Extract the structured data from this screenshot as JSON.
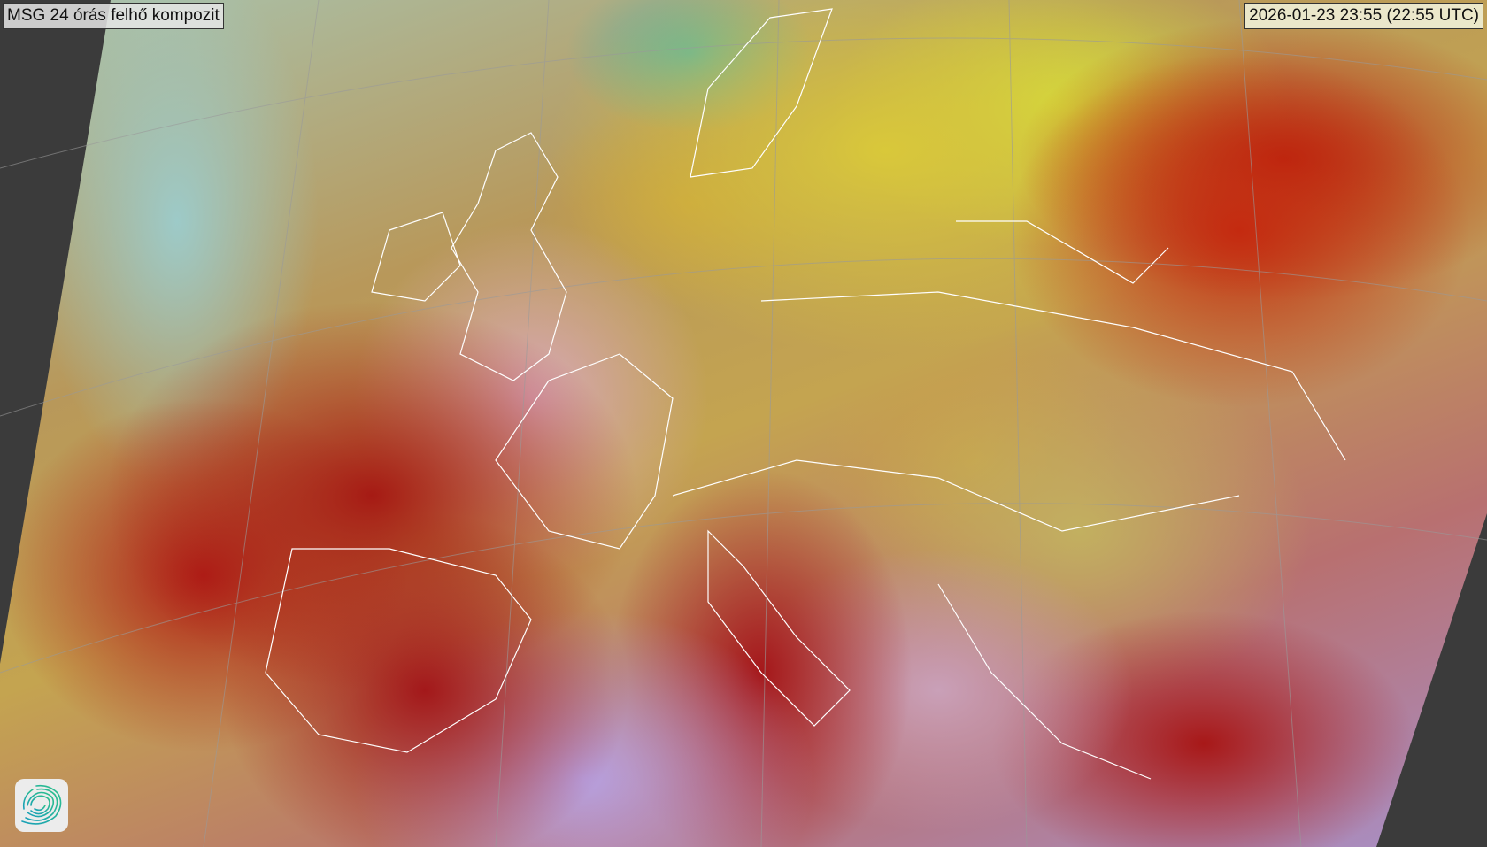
{
  "title": "MSG 24 órás felhő kompozit",
  "timestamp": "2026-01-23 23:55 (22:55 UTC)",
  "logo": {
    "icon": "swirl-logo-icon",
    "colors": [
      "#1aa0b8",
      "#2cc08a"
    ]
  },
  "colors": {
    "background": "#3b3b3b",
    "border_lines": "#ffffff",
    "graticule": "#9a9a9a"
  }
}
